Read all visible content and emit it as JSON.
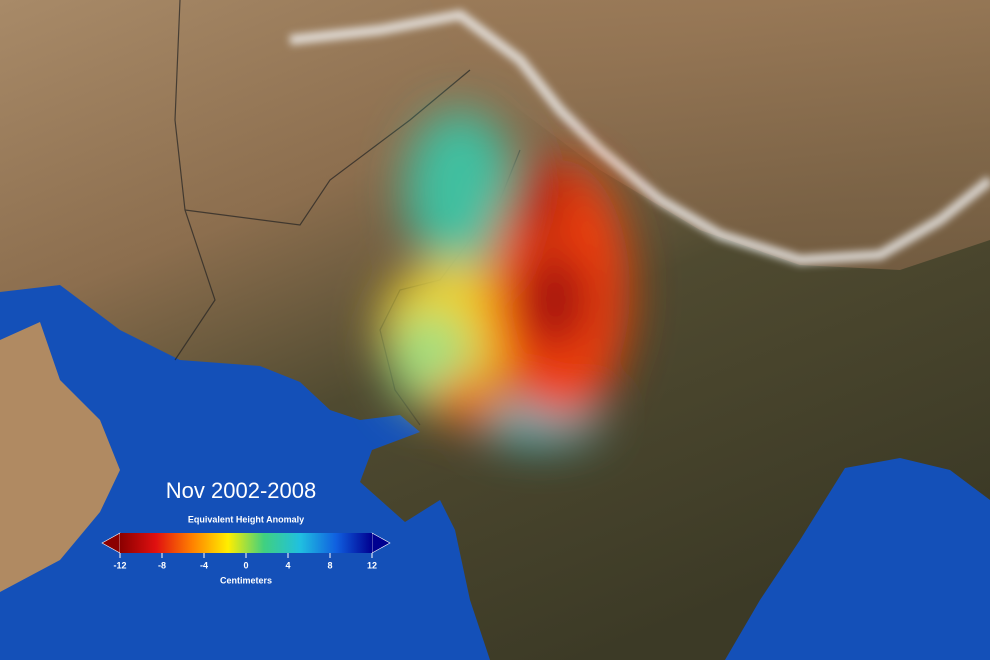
{
  "title": "Nov 2002-2008",
  "colorbar": {
    "label": "Equivalent Height Anomaly",
    "unit": "Centimeters",
    "lim": [
      -12,
      12
    ],
    "ticks": [
      -12,
      -8,
      -4,
      0,
      4,
      8,
      12
    ],
    "colors": [
      "#8b0000",
      "#e01010",
      "#ff8000",
      "#ffee00",
      "#40d080",
      "#20c0e0",
      "#1060e0",
      "#000090"
    ]
  }
}
